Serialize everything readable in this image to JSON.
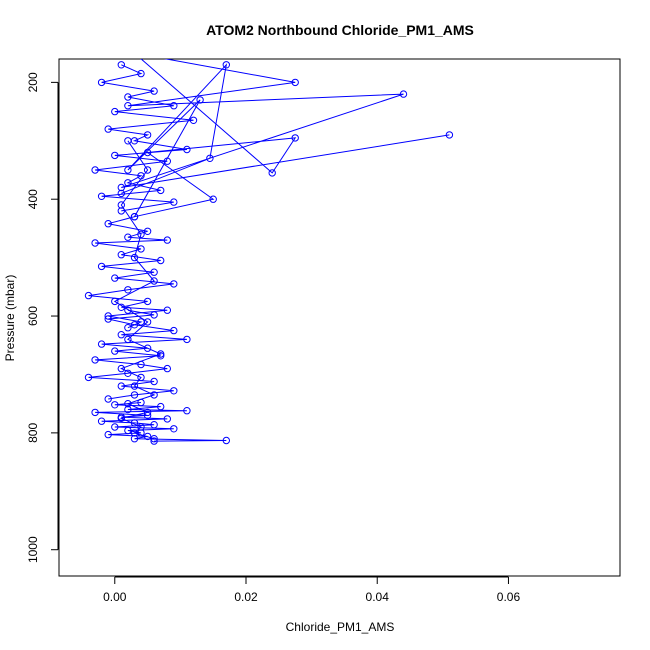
{
  "chart_data": {
    "type": "line",
    "title": "ATOM2 Northbound Chloride_PM1_AMS",
    "xlabel": "Chloride_PM1_AMS",
    "ylabel": "Pressure (mbar)",
    "xlim": [
      -0.0085,
      0.077
    ],
    "ylim": [
      1045,
      160
    ],
    "y_reversed": true,
    "x_ticks": [
      0.0,
      0.02,
      0.04,
      0.06
    ],
    "x_tick_labels": [
      "0.00",
      "0.02",
      "0.04",
      "0.06"
    ],
    "y_ticks": [
      200,
      400,
      600,
      800,
      1000
    ],
    "y_tick_labels": [
      "200",
      "400",
      "600",
      "800",
      "1000"
    ],
    "grid": false,
    "legend": "none",
    "color": "#0000ff",
    "marker": "open-circle",
    "series": [
      {
        "x": [
          0.051,
          0.001,
          0.044,
          0.002,
          0.0275,
          0.003,
          0.024,
          0.0275,
          0.005,
          0.015,
          0.003,
          0.013,
          0.002,
          0.017,
          0.0145,
          0.001
        ],
        "y": [
          290,
          380,
          220,
          240,
          200,
          150,
          355,
          295,
          320,
          400,
          430,
          230,
          350,
          170,
          330,
          390
        ]
      },
      {
        "x": [
          0.001,
          0.004,
          -0.002,
          0.006,
          0.002,
          0.009,
          0.0,
          0.012,
          -0.001,
          0.005,
          0.003,
          0.011,
          0.0,
          0.008,
          -0.003,
          0.004,
          0.002,
          0.007,
          -0.002,
          0.009,
          0.001
        ],
        "y": [
          170,
          185,
          200,
          215,
          225,
          240,
          250,
          265,
          280,
          290,
          300,
          315,
          325,
          335,
          350,
          360,
          372,
          385,
          395,
          405,
          420
        ]
      },
      {
        "x": [
          0.003,
          -0.001,
          0.005,
          0.002,
          0.008,
          -0.003,
          0.004,
          0.001,
          0.007,
          -0.002,
          0.006,
          0.0,
          0.009,
          0.002,
          -0.004,
          0.005,
          0.001,
          0.008,
          -0.001,
          0.004,
          0.002
        ],
        "y": [
          430,
          442,
          455,
          465,
          470,
          475,
          485,
          495,
          505,
          515,
          525,
          535,
          545,
          555,
          565,
          575,
          585,
          590,
          600,
          610,
          620
        ]
      },
      {
        "x": [
          0.002,
          0.006,
          -0.001,
          0.003,
          0.009,
          0.001,
          0.011,
          -0.002,
          0.005,
          0.0,
          0.007,
          -0.003,
          0.004,
          0.008,
          0.002,
          -0.004,
          0.006,
          0.001,
          0.009,
          0.003,
          -0.001
        ],
        "y": [
          590,
          598,
          605,
          615,
          625,
          632,
          640,
          648,
          655,
          660,
          668,
          675,
          683,
          690,
          698,
          705,
          712,
          720,
          728,
          735,
          742
        ]
      },
      {
        "x": [
          0.004,
          0.0,
          0.007,
          0.002,
          0.011,
          -0.003,
          0.005,
          0.001,
          0.008,
          -0.002,
          0.003,
          0.006,
          0.0,
          0.009,
          0.002,
          0.004,
          -0.001,
          0.005,
          0.003,
          0.017,
          0.006
        ],
        "y": [
          748,
          752,
          755,
          760,
          762,
          765,
          770,
          773,
          776,
          780,
          783,
          786,
          790,
          793,
          796,
          800,
          803,
          806,
          810,
          813,
          814
        ]
      },
      {
        "x": [
          0.002,
          0.005,
          0.001,
          0.004,
          0.003,
          0.006,
          0.0,
          0.005,
          0.002,
          0.007,
          0.001,
          0.004,
          0.003,
          0.006,
          0.002,
          0.005,
          0.001,
          0.004,
          0.003,
          0.006
        ],
        "y": [
          300,
          350,
          410,
          460,
          500,
          540,
          575,
          610,
          640,
          665,
          690,
          705,
          720,
          735,
          750,
          765,
          775,
          790,
          800,
          810
        ]
      }
    ]
  }
}
